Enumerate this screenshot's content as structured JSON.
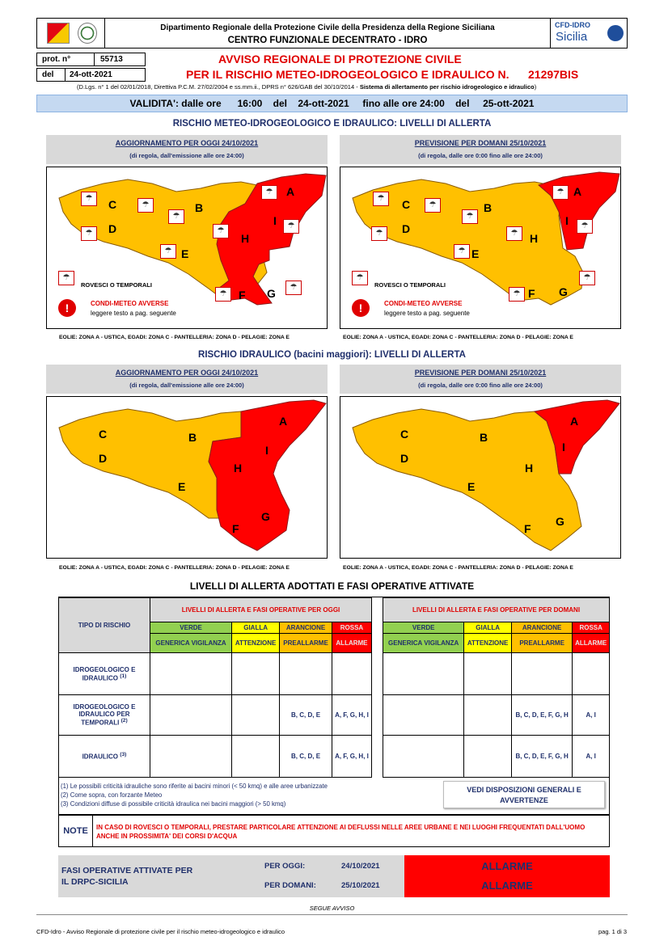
{
  "header": {
    "dept": "Dipartimento Regionale della Protezione Civile della Presidenza della Regione Siciliana",
    "centro": "CENTRO FUNZIONALE DECENTRATO - IDRO",
    "logo_right_top": "CFD-IDRO",
    "logo_right_bottom": "Sicilia"
  },
  "protocol": {
    "prot_label": "prot. n°",
    "prot_value": "55713",
    "del_label": "del",
    "del_value": "24-ott-2021"
  },
  "avviso": {
    "line1": "AVVISO REGIONALE DI PROTEZIONE CIVILE",
    "line2": "PER IL RISCHIO METEO-IDROGEOLOGICO E IDRAULICO N.",
    "number": "21297BIS",
    "legal_pre": "(D.Lgs. n° 1 del 02/01/2018, Direttiva P.C.M. 27/02/2004 e ss.mm.ii., DPRS n° 626/GAB del 30/10/2014 - ",
    "legal_bold": "Sistema di allertamento per rischio idrogeologico e idraulico",
    "legal_post": ")"
  },
  "validity": {
    "text": "VALIDITA': dalle ore      16:00    del    24-ott-2021     fino alle ore 24:00    del     25-ott-2021"
  },
  "section1": {
    "title": "RISCHIO METEO-IDROGEOLOGICO E IDRAULICO: LIVELLI DI ALLERTA",
    "left_head": "AGGIORNAMENTO PER OGGI 24/10/2021",
    "left_sub": "(di regola, dall'emissione alle ore 24:00)",
    "right_head": "PREVISIONE PER DOMANI 25/10/2021",
    "right_sub": "(di regola, dalle ore 0:00 fino alle ore 24:00)",
    "rovesci": "ROVESCI O TEMPORALI",
    "condi": "CONDI-METEO AVVERSE",
    "leggere": "leggere testo a pag. seguente",
    "eolie": "EOLIE: ZONA A - USTICA, EGADI: ZONA C - PANTELLERIA: ZONA D - PELAGIE: ZONA E"
  },
  "section2": {
    "title": "RISCHIO IDRAULICO (bacini maggiori): LIVELLI DI ALLERTA",
    "left_head": "AGGIORNAMENTO PER OGGI 24/10/2021",
    "left_sub": "(di regola, dall'emissione alle ore 24:00)",
    "right_head": "PREVISIONE PER DOMANI 25/10/2021",
    "right_sub": "(di regola, dalle ore 0:00 fino alle ore 24:00)",
    "eolie": "EOLIE: ZONA A - USTICA, EGADI: ZONA C - PANTELLERIA: ZONA D - PELAGIE: ZONA E"
  },
  "zones": {
    "a": "A",
    "b": "B",
    "c": "C",
    "d": "D",
    "e": "E",
    "f": "F",
    "g": "G",
    "h": "H",
    "i": "I"
  },
  "colors": {
    "orange": "#ffc000",
    "red": "#ff0000",
    "navy": "#1f2f6b"
  },
  "levels": {
    "title": "LIVELLI DI ALLERTA ADOTTATI E FASI OPERATIVE ATTIVATE",
    "tipo": "TIPO DI RISCHIO",
    "oggi_head": "LIVELLI DI ALLERTA E FASI OPERATIVE PER OGGI",
    "domani_head": "LIVELLI DI ALLERTA E FASI OPERATIVE PER DOMANI",
    "cols": [
      {
        "a": "VERDE",
        "b": "GENERICA VIGILANZA"
      },
      {
        "a": "GIALLA",
        "b": "ATTENZIONE"
      },
      {
        "a": "ARANCIONE",
        "b": "PREALLARME"
      },
      {
        "a": "ROSSA",
        "b": "ALLARME"
      }
    ],
    "rows": [
      {
        "label": "IDROGEOLOGICO E IDRAULICO",
        "sup": "(1)",
        "oggi": [
          "",
          "",
          "",
          ""
        ],
        "domani": [
          "",
          "",
          "",
          ""
        ]
      },
      {
        "label": "IDROGEOLOGICO E IDRAULICO PER TEMPORALI",
        "sup": "(2)",
        "oggi": [
          "",
          "",
          "B, C, D, E",
          "A, F, G, H, I"
        ],
        "domani": [
          "",
          "",
          "B, C, D, E, F, G, H",
          "A, I"
        ]
      },
      {
        "label": "IDRAULICO",
        "sup": "(3)",
        "oggi": [
          "",
          "",
          "B, C, D, E",
          "A, F, G, H, I"
        ],
        "domani": [
          "",
          "",
          "B, C, D, E, F, G, H",
          "A, I"
        ]
      }
    ],
    "note1": "(1) Le possibili criticità idrauliche sono riferite ai bacini minori (< 50 kmq) e alle aree urbanizzate",
    "note2": "(2) Come sopra, con forzante Meteo",
    "note3": "(3) Condizioni diffuse di possibile criticità idraulica nei bacini maggiori (> 50 kmq)",
    "vedi": "VEDI DISPOSIZIONI GENERALI E AVVERTENZE",
    "note_label": "NOTE",
    "note_text": "IN CASO DI ROVESCI O TEMPORALI, PRESTARE PARTICOLARE ATTENZIONE AI DEFLUSSI NELLE AREE URBANE E NEI LUOGHI FREQUENTATI DALL'UOMO ANCHE IN PROSSIMITA' DEI CORSI D'ACQUA"
  },
  "fasi": {
    "label": "FASI OPERATIVE ATTIVATE PER IL DRPC-SICILIA",
    "oggi_label": "PER OGGI:",
    "oggi_date": "24/10/2021",
    "domani_label": "PER DOMANI:",
    "domani_date": "25/10/2021",
    "oggi_state": "ALLARME",
    "domani_state": "ALLARME"
  },
  "segue": "SEGUE AVVISO",
  "footer": {
    "left": "CFD-Idro - Avviso Regionale di protezione civile per il rischio meteo-idrogeologico e idraulico",
    "right": "pag. 1 di 3"
  }
}
